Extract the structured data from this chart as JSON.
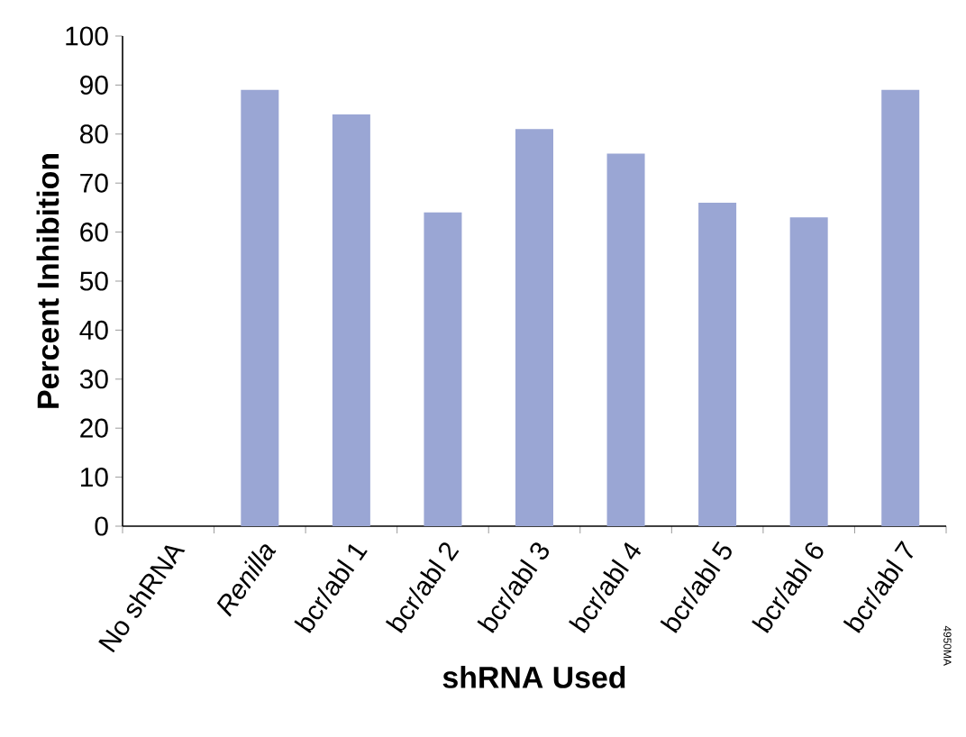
{
  "chart_data": {
    "type": "bar",
    "categories": [
      "No shRNA",
      "*Renilla*",
      "bcr/abl 1",
      "bcr/abl 2",
      "bcr/abl 3",
      "bcr/abl 4",
      "bcr/abl 5",
      "bcr/abl 6",
      "bcr/abl 7"
    ],
    "values": [
      0,
      89,
      84,
      64,
      81,
      76,
      66,
      63,
      89
    ],
    "color": "#9aa6d4",
    "xlabel": "shRNA Used",
    "ylabel": "Percent Inhibition",
    "ylim": [
      0,
      100
    ],
    "yticks": [
      0,
      10,
      20,
      30,
      40,
      50,
      60,
      70,
      80,
      90,
      100
    ],
    "annotations": [
      "4950MA"
    ]
  }
}
